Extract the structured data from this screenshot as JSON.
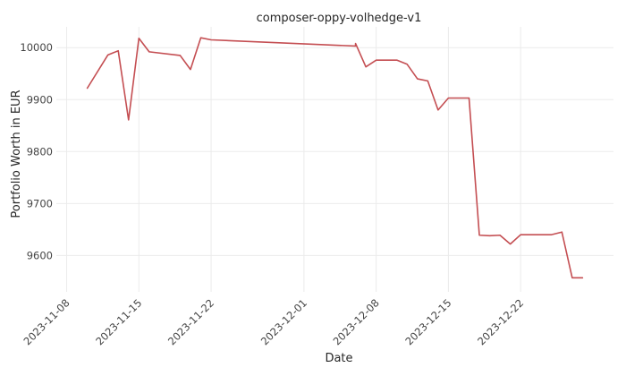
{
  "chart_data": {
    "type": "line",
    "title": "composer-oppy-volhedge-v1",
    "xlabel": "Date",
    "ylabel": "Portfolio Worth in EUR",
    "x_type": "date",
    "xlim": [
      "2023-11-07",
      "2023-12-31"
    ],
    "ylim": [
      9530,
      10040
    ],
    "x_ticks": [
      "2023-11-08",
      "2023-11-15",
      "2023-11-22",
      "2023-12-01",
      "2023-12-08",
      "2023-12-15",
      "2023-12-22"
    ],
    "y_ticks": [
      9600,
      9700,
      9800,
      9900,
      10000
    ],
    "grid": true,
    "line_color": "#c44e52",
    "series": [
      {
        "x": [
          "2023-11-10",
          "2023-11-12",
          "2023-11-13",
          "2023-11-14",
          "2023-11-15",
          "2023-11-16",
          "2023-11-19",
          "2023-11-20",
          "2023-11-21",
          "2023-11-22",
          "2023-12-06",
          "2023-12-06",
          "2023-12-07",
          "2023-12-08",
          "2023-12-10",
          "2023-12-11",
          "2023-12-12",
          "2023-12-13",
          "2023-12-14",
          "2023-12-15",
          "2023-12-17",
          "2023-12-18",
          "2023-12-19",
          "2023-12-20",
          "2023-12-21",
          "2023-12-22",
          "2023-12-25",
          "2023-12-26",
          "2023-12-27",
          "2023-12-28"
        ],
        "y": [
          9922,
          9986,
          9994,
          9861,
          10018,
          9992,
          9985,
          9958,
          10019,
          10015,
          10003,
          10008,
          9963,
          9976,
          9976,
          9968,
          9940,
          9936,
          9880,
          9903,
          9903,
          9639,
          9638,
          9639,
          9622,
          9640,
          9640,
          9645,
          9557,
          9557
        ]
      }
    ]
  }
}
